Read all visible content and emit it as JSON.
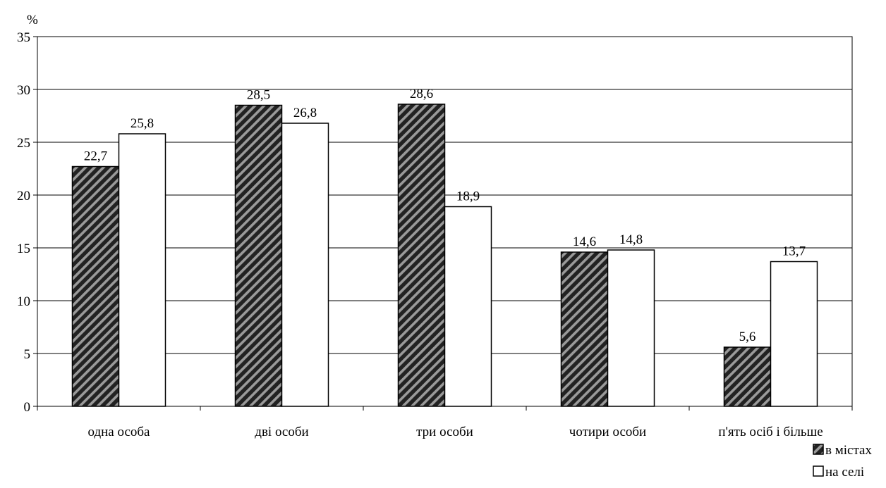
{
  "chart_data": {
    "type": "bar",
    "ylabel": "%",
    "ylim": [
      0,
      35
    ],
    "yticks": [
      0,
      5,
      10,
      15,
      20,
      25,
      30,
      35
    ],
    "grid": true,
    "legend_position": "bottom-right",
    "categories": [
      "одна особа",
      "дві особи",
      "три особи",
      "чотири особи",
      "п'ять осіб і більше"
    ],
    "series": [
      {
        "name": "в містах",
        "values": [
          22.7,
          28.5,
          28.6,
          14.6,
          5.6
        ],
        "labels": [
          "22,7",
          "28,5",
          "28,6",
          "14,6",
          "5,6"
        ],
        "pattern": "diagonal-hatch",
        "color": "#333333"
      },
      {
        "name": "на селі",
        "values": [
          25.8,
          26.8,
          18.9,
          14.8,
          13.7
        ],
        "labels": [
          "25,8",
          "26,8",
          "18,9",
          "14,8",
          "13,7"
        ],
        "pattern": "solid",
        "color": "#ffffff"
      }
    ]
  }
}
